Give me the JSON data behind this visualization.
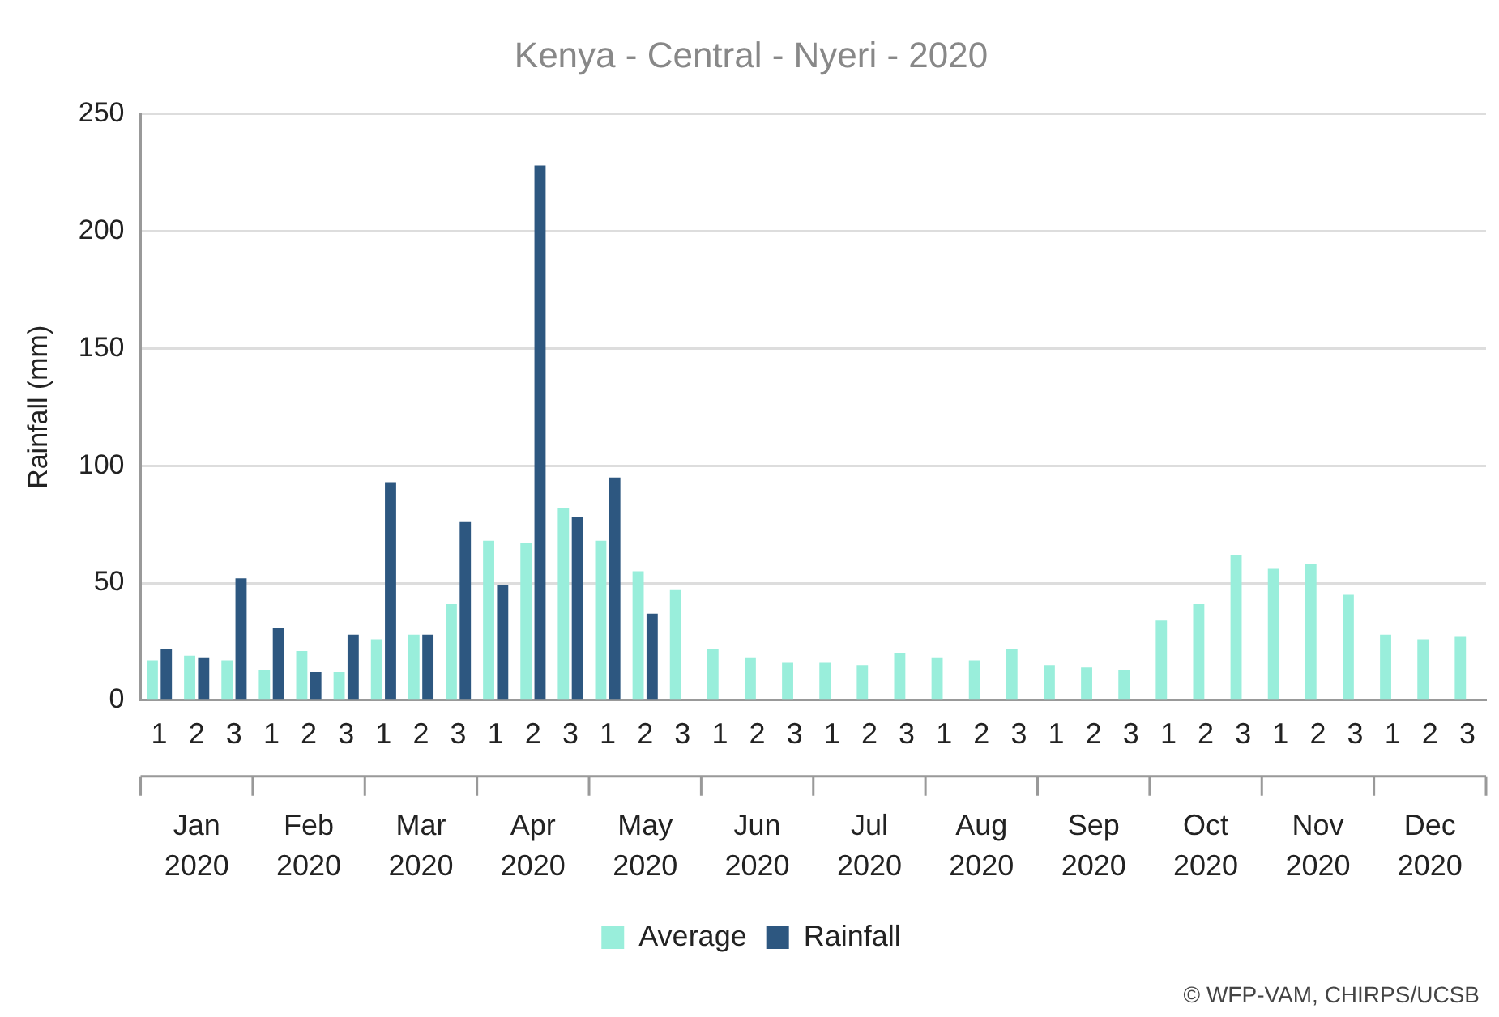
{
  "chart_data": {
    "type": "bar",
    "title": "Kenya - Central - Nyeri - 2020",
    "ylabel": "Rainfall (mm)",
    "categories": [
      "1",
      "2",
      "3",
      "1",
      "2",
      "3",
      "1",
      "2",
      "3",
      "1",
      "2",
      "3",
      "1",
      "2",
      "3",
      "1",
      "2",
      "3",
      "1",
      "2",
      "3",
      "1",
      "2",
      "3",
      "1",
      "2",
      "3",
      "1",
      "2",
      "3",
      "1",
      "2",
      "3",
      "1",
      "2",
      "3"
    ],
    "series": [
      {
        "name": "Average",
        "color": "#99eedb",
        "values": [
          17,
          19,
          17,
          13,
          21,
          12,
          26,
          28,
          41,
          68,
          67,
          82,
          68,
          55,
          47,
          22,
          18,
          16,
          16,
          15,
          20,
          18,
          17,
          22,
          15,
          14,
          13,
          34,
          41,
          62,
          56,
          58,
          45,
          28,
          26,
          27
        ]
      },
      {
        "name": "Rainfall",
        "color": "#2d5780",
        "values": [
          22,
          18,
          52,
          31,
          12,
          28,
          93,
          28,
          76,
          49,
          228,
          78,
          95,
          37,
          null,
          null,
          null,
          null,
          null,
          null,
          null,
          null,
          null,
          null,
          null,
          null,
          null,
          null,
          null,
          null,
          null,
          null,
          null,
          null,
          null,
          null
        ]
      }
    ],
    "ylim": [
      0,
      250
    ],
    "yticks": [
      0,
      50,
      100,
      150,
      200,
      250
    ],
    "grid": "y",
    "legend": "bottom",
    "annotations": [
      "Jan 2020",
      "Feb 2020",
      "Mar 2020",
      "Apr 2020",
      "May 2020",
      "Jun 2020",
      "Jul 2020",
      "Aug 2020",
      "Sep 2020",
      "Oct 2020",
      "Nov 2020",
      "Dec 2020",
      "© WFP-VAM, CHIRPS/UCSB"
    ]
  }
}
